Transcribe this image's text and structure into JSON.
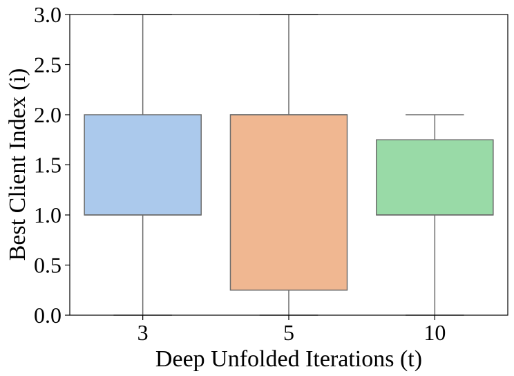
{
  "chart_data": {
    "type": "box",
    "xlabel": "Deep Unfolded Iterations (t)",
    "ylabel": "Best Client Index (i)",
    "ylim": [
      0,
      3.0
    ],
    "yticks": [
      "0.0",
      "0.5",
      "1.0",
      "1.5",
      "2.0",
      "2.5",
      "3.0"
    ],
    "categories": [
      "3",
      "5",
      "10"
    ],
    "boxes": [
      {
        "category": "3",
        "whisker_low": 0,
        "q1": 1.0,
        "median": 1.0,
        "q3": 2.0,
        "whisker_high": 3.0,
        "color": "#abc9ec"
      },
      {
        "category": "5",
        "whisker_low": 0,
        "q1": 0.25,
        "median": 2.0,
        "q3": 2.0,
        "whisker_high": 3.0,
        "color": "#f0b791"
      },
      {
        "category": "10",
        "whisker_low": 0,
        "q1": 1.0,
        "median": 1.0,
        "q3": 1.75,
        "whisker_high": 2.0,
        "color": "#99daa7"
      }
    ],
    "grid": false,
    "legend": "none"
  }
}
